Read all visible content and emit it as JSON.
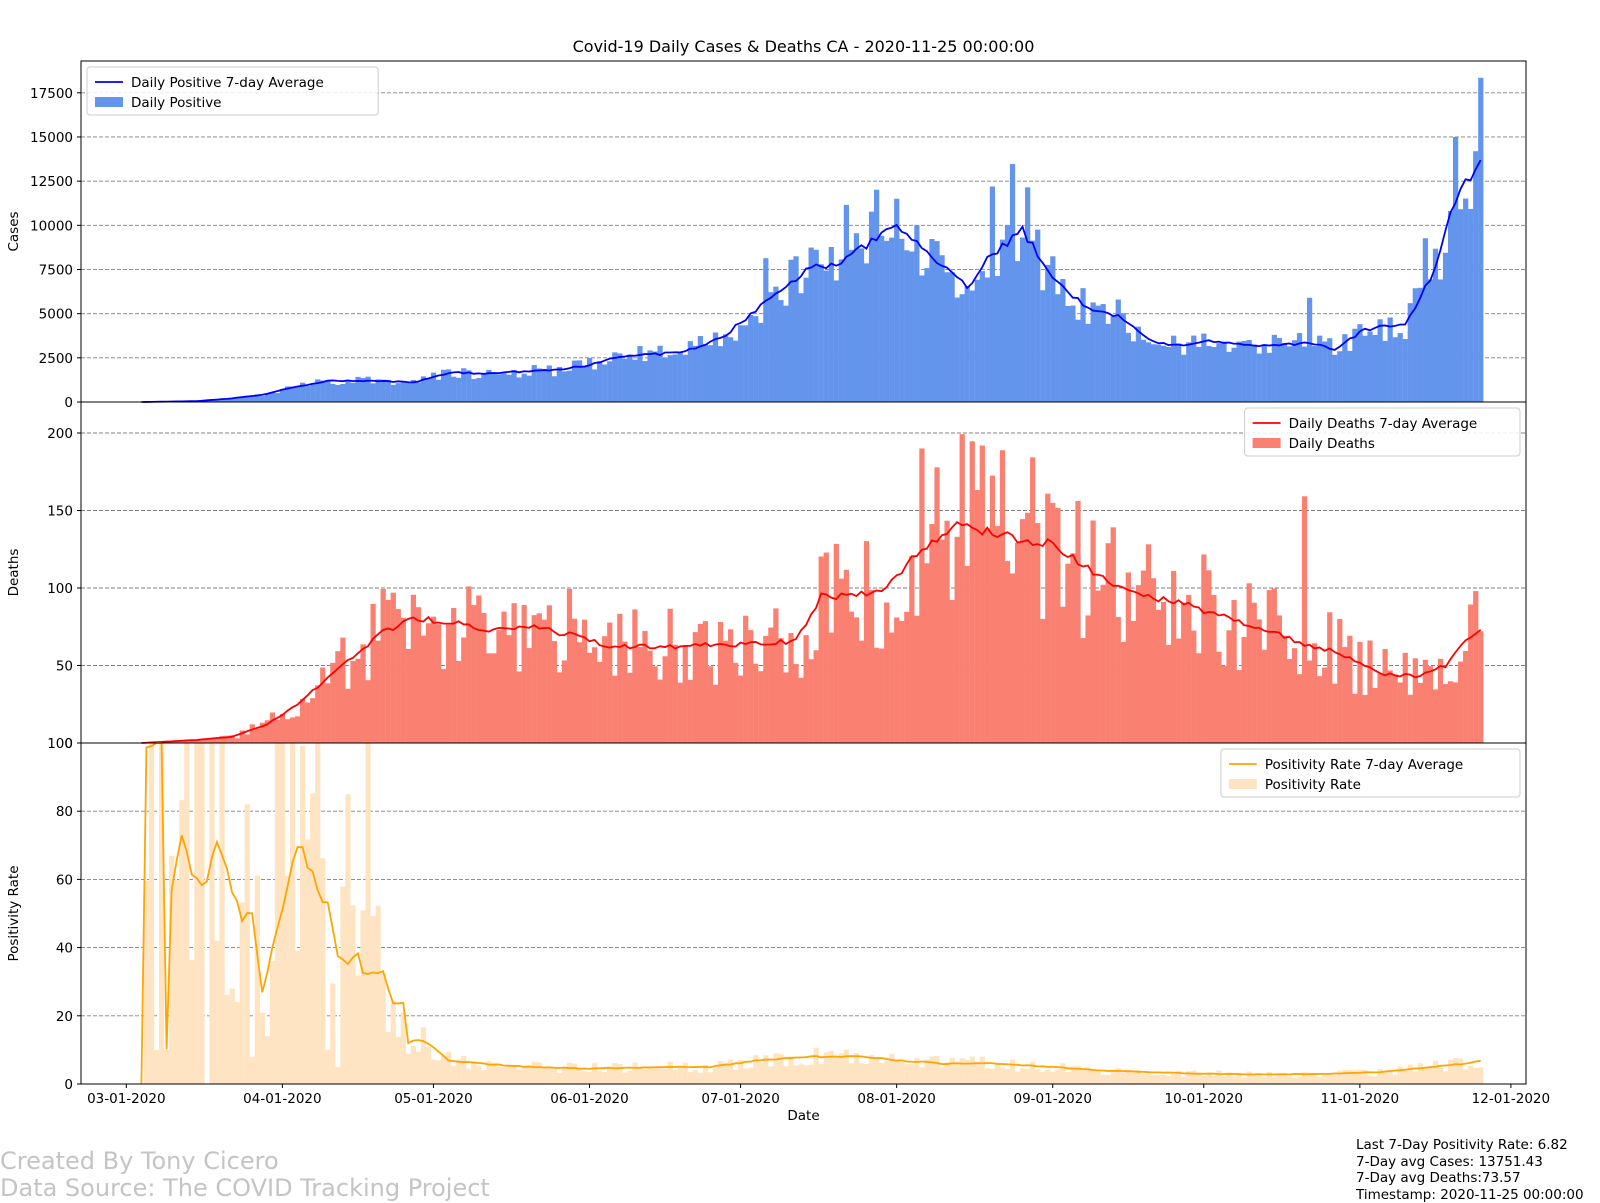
{
  "chart_data": {
    "type": "bar",
    "title": "Covid-19 Daily Cases & Deaths CA - 2020-11-25 00:00:00",
    "xlabel": "Date",
    "x_ticks": [
      "03-01-2020",
      "04-01-2020",
      "05-01-2020",
      "06-01-2020",
      "07-01-2020",
      "08-01-2020",
      "09-01-2020",
      "10-01-2020",
      "11-01-2020",
      "12-01-2020"
    ],
    "x_range": [
      "2020-02-21",
      "2020-12-04"
    ],
    "first_date": "2020-03-04",
    "last_date": "2020-11-25",
    "grid": "horizontal dashed",
    "panels": [
      {
        "ylabel": "Cases",
        "ylim": [
          0,
          19300
        ],
        "yticks": [
          0,
          2500,
          5000,
          7500,
          10000,
          12500,
          15000,
          17500
        ],
        "legend_position": "upper-left",
        "series": [
          {
            "name": "Daily Positive 7-day Average",
            "kind": "line",
            "color": "#0000ff",
            "knots": [
              [
                "2020-03-04",
                0
              ],
              [
                "2020-03-15",
                50
              ],
              [
                "2020-03-21",
                180
              ],
              [
                "2020-03-28",
                400
              ],
              [
                "2020-04-01",
                700
              ],
              [
                "2020-04-10",
                1200
              ],
              [
                "2020-04-20",
                1200
              ],
              [
                "2020-04-27",
                1100
              ],
              [
                "2020-05-05",
                1700
              ],
              [
                "2020-05-10",
                1600
              ],
              [
                "2020-05-17",
                1700
              ],
              [
                "2020-05-25",
                1800
              ],
              [
                "2020-06-01",
                2100
              ],
              [
                "2020-06-07",
                2600
              ],
              [
                "2020-06-15",
                2700
              ],
              [
                "2020-06-22",
                3000
              ],
              [
                "2020-06-28",
                3800
              ],
              [
                "2020-07-05",
                5400
              ],
              [
                "2020-07-10",
                6600
              ],
              [
                "2020-07-15",
                7600
              ],
              [
                "2020-07-20",
                7800
              ],
              [
                "2020-07-25",
                8700
              ],
              [
                "2020-08-01",
                9900
              ],
              [
                "2020-08-05",
                8900
              ],
              [
                "2020-08-10",
                7700
              ],
              [
                "2020-08-15",
                6500
              ],
              [
                "2020-08-20",
                8400
              ],
              [
                "2020-08-26",
                9700
              ],
              [
                "2020-09-01",
                7000
              ],
              [
                "2020-09-08",
                5300
              ],
              [
                "2020-09-14",
                4900
              ],
              [
                "2020-09-20",
                3500
              ],
              [
                "2020-09-26",
                3200
              ],
              [
                "2020-10-02",
                3500
              ],
              [
                "2020-10-10",
                3200
              ],
              [
                "2020-10-16",
                3200
              ],
              [
                "2020-10-22",
                3400
              ],
              [
                "2020-10-27",
                3000
              ],
              [
                "2020-11-02",
                4100
              ],
              [
                "2020-11-06",
                4300
              ],
              [
                "2020-11-10",
                4400
              ],
              [
                "2020-11-16",
                7500
              ],
              [
                "2020-11-20",
                11500
              ],
              [
                "2020-11-25",
                13751
              ]
            ]
          },
          {
            "name": "Daily Positive",
            "kind": "bar",
            "color": "#6495ed",
            "noise": 0.2,
            "spikes": [
              [
                "2020-07-06",
                2500
              ],
              [
                "2020-07-22",
                3000
              ],
              [
                "2020-07-28",
                2800
              ],
              [
                "2020-08-20",
                3800
              ],
              [
                "2020-08-24",
                4200
              ],
              [
                "2020-08-27",
                2900
              ],
              [
                "2020-10-22",
                2500
              ],
              [
                "2020-11-14",
                2800
              ],
              [
                "2020-11-20",
                3500
              ],
              [
                "2020-11-25",
                4600
              ]
            ]
          }
        ]
      },
      {
        "ylabel": "Deaths",
        "ylim": [
          0,
          220
        ],
        "yticks": [
          0,
          50,
          100,
          150,
          200
        ],
        "legend_position": "upper-right",
        "series": [
          {
            "name": "Daily Deaths 7-day Average",
            "kind": "line",
            "color": "#ff0000",
            "knots": [
              [
                "2020-03-04",
                0
              ],
              [
                "2020-03-15",
                2
              ],
              [
                "2020-03-22",
                4
              ],
              [
                "2020-03-29",
                12
              ],
              [
                "2020-04-04",
                25
              ],
              [
                "2020-04-10",
                42
              ],
              [
                "2020-04-15",
                55
              ],
              [
                "2020-04-20",
                70
              ],
              [
                "2020-04-27",
                80
              ],
              [
                "2020-05-05",
                78
              ],
              [
                "2020-05-12",
                73
              ],
              [
                "2020-05-20",
                75
              ],
              [
                "2020-05-28",
                70
              ],
              [
                "2020-06-05",
                62
              ],
              [
                "2020-06-15",
                62
              ],
              [
                "2020-06-25",
                63
              ],
              [
                "2020-07-05",
                64
              ],
              [
                "2020-07-12",
                66
              ],
              [
                "2020-07-17",
                95
              ],
              [
                "2020-07-24",
                95
              ],
              [
                "2020-07-30",
                100
              ],
              [
                "2020-08-06",
                125
              ],
              [
                "2020-08-12",
                140
              ],
              [
                "2020-08-20",
                137
              ],
              [
                "2020-08-26",
                130
              ],
              [
                "2020-09-01",
                128
              ],
              [
                "2020-09-08",
                112
              ],
              [
                "2020-09-14",
                100
              ],
              [
                "2020-09-20",
                95
              ],
              [
                "2020-09-26",
                90
              ],
              [
                "2020-10-02",
                85
              ],
              [
                "2020-10-10",
                76
              ],
              [
                "2020-10-16",
                70
              ],
              [
                "2020-10-22",
                63
              ],
              [
                "2020-10-28",
                58
              ],
              [
                "2020-11-05",
                45
              ],
              [
                "2020-11-12",
                43
              ],
              [
                "2020-11-18",
                50
              ],
              [
                "2020-11-22",
                66
              ],
              [
                "2020-11-25",
                73.57
              ]
            ]
          },
          {
            "name": "Daily Deaths",
            "kind": "bar",
            "color": "#fa8072",
            "noise": 0.42,
            "spikes": [
              [
                "2020-08-06",
                65
              ],
              [
                "2020-08-14",
                60
              ],
              [
                "2020-08-28",
                55
              ],
              [
                "2020-10-21",
                95
              ]
            ]
          }
        ]
      },
      {
        "ylabel": "Positivity Rate",
        "ylim": [
          0,
          100
        ],
        "yticks": [
          0,
          20,
          40,
          60,
          80,
          100
        ],
        "legend_position": "upper-right",
        "series": [
          {
            "name": "Positivity Rate 7-day Average",
            "kind": "line",
            "color": "#ffa500",
            "knots": [
              [
                "2020-03-04",
                0
              ],
              [
                "2020-03-05",
                100
              ],
              [
                "2020-03-08",
                100
              ],
              [
                "2020-03-09",
                10
              ],
              [
                "2020-03-10",
                58
              ],
              [
                "2020-03-12",
                74
              ],
              [
                "2020-03-14",
                60
              ],
              [
                "2020-03-17",
                59
              ],
              [
                "2020-03-19",
                72
              ],
              [
                "2020-03-21",
                62
              ],
              [
                "2020-03-24",
                48
              ],
              [
                "2020-03-26",
                50
              ],
              [
                "2020-03-28",
                27
              ],
              [
                "2020-03-30",
                40
              ],
              [
                "2020-04-02",
                57
              ],
              [
                "2020-04-04",
                71
              ],
              [
                "2020-04-06",
                65
              ],
              [
                "2020-04-08",
                57
              ],
              [
                "2020-04-10",
                52
              ],
              [
                "2020-04-12",
                38
              ],
              [
                "2020-04-14",
                35
              ],
              [
                "2020-04-16",
                38
              ],
              [
                "2020-04-17",
                33
              ],
              [
                "2020-04-21",
                33
              ],
              [
                "2020-04-23",
                24
              ],
              [
                "2020-04-25",
                24
              ],
              [
                "2020-04-26",
                12
              ],
              [
                "2020-04-28",
                13
              ],
              [
                "2020-05-01",
                11
              ],
              [
                "2020-05-04",
                7
              ],
              [
                "2020-05-10",
                6
              ],
              [
                "2020-05-20",
                5
              ],
              [
                "2020-06-01",
                4.5
              ],
              [
                "2020-06-15",
                5
              ],
              [
                "2020-06-25",
                5
              ],
              [
                "2020-07-05",
                7
              ],
              [
                "2020-07-15",
                8
              ],
              [
                "2020-07-25",
                8
              ],
              [
                "2020-08-01",
                7
              ],
              [
                "2020-08-10",
                6
              ],
              [
                "2020-08-20",
                6
              ],
              [
                "2020-09-01",
                5
              ],
              [
                "2020-09-10",
                4
              ],
              [
                "2020-09-20",
                3.5
              ],
              [
                "2020-10-01",
                3
              ],
              [
                "2020-10-15",
                2.8
              ],
              [
                "2020-10-25",
                3
              ],
              [
                "2020-11-05",
                3.5
              ],
              [
                "2020-11-15",
                5
              ],
              [
                "2020-11-22",
                6
              ],
              [
                "2020-11-25",
                6.82
              ]
            ]
          },
          {
            "name": "Positivity Rate",
            "kind": "bar",
            "color": "#ffe4c4",
            "noise": 0.35,
            "spikes": [
              [
                "2020-03-06",
                100
              ],
              [
                "2020-03-08",
                100
              ],
              [
                "2020-03-13",
                100
              ],
              [
                "2020-03-15",
                100
              ],
              [
                "2020-03-16",
                100
              ],
              [
                "2020-03-18",
                100
              ],
              [
                "2020-03-20",
                100
              ],
              [
                "2020-03-25",
                82
              ],
              [
                "2020-03-31",
                100
              ],
              [
                "2020-04-01",
                100
              ],
              [
                "2020-04-03",
                100
              ],
              [
                "2020-04-08",
                100
              ],
              [
                "2020-04-14",
                85
              ],
              [
                "2020-04-18",
                100
              ]
            ],
            "drops": [
              [
                "2020-03-07",
                10
              ],
              [
                "2020-03-09",
                10
              ],
              [
                "2020-03-17",
                0
              ],
              [
                "2020-03-22",
                28
              ],
              [
                "2020-03-26",
                8
              ],
              [
                "2020-03-29",
                14
              ],
              [
                "2020-04-10",
                10
              ],
              [
                "2020-04-12",
                5
              ]
            ]
          }
        ]
      }
    ]
  },
  "footer": {
    "credit_line1": "Created By Tony Cicero",
    "credit_line2": "Data Source: The COVID Tracking Project",
    "stat_positivity": "Last 7-Day Positivity Rate: 6.82",
    "stat_cases": "7-Day avg Cases: 13751.43",
    "stat_deaths": "7-Day avg Deaths:73.57",
    "stat_timestamp": "Timestamp: 2020-11-25 00:00:00"
  }
}
